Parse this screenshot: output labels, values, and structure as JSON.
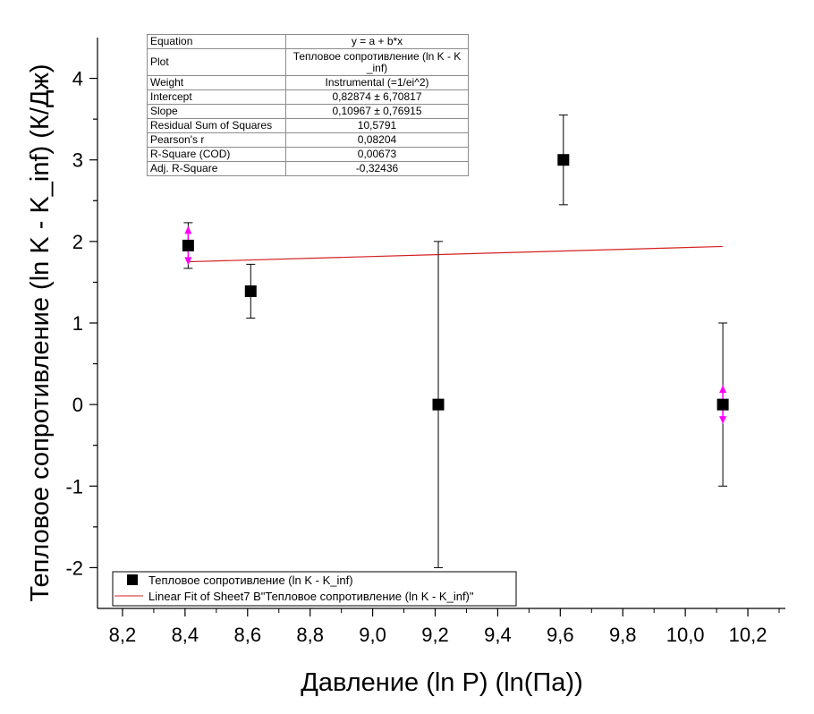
{
  "chart_data": {
    "type": "scatter",
    "xlabel": "Давление (ln P) (ln(Па))",
    "ylabel": "Тепловое сопротивление (ln K - K_inf) (К/Дж)",
    "xlim": [
      8.12,
      10.32
    ],
    "ylim": [
      -2.5,
      4.5
    ],
    "x_ticks": [
      "8,2",
      "8,4",
      "8,6",
      "8,8",
      "9,0",
      "9,2",
      "9,4",
      "9,6",
      "9,8",
      "10,0",
      "10,2"
    ],
    "x_tick_values": [
      8.2,
      8.4,
      8.6,
      8.8,
      9.0,
      9.2,
      9.4,
      9.6,
      9.8,
      10.0,
      10.2
    ],
    "y_ticks": [
      "-2",
      "-1",
      "0",
      "1",
      "2",
      "3",
      "4"
    ],
    "y_tick_values": [
      -2,
      -1,
      0,
      1,
      2,
      3,
      4
    ],
    "series": [
      {
        "name": "Тепловое сопротивление (ln K - K_inf)",
        "marker": "square",
        "color": "#000000",
        "points": [
          {
            "x": 8.41,
            "y": 1.95,
            "err": 0.28,
            "clipped_error": true
          },
          {
            "x": 8.61,
            "y": 1.39,
            "err": 0.33,
            "clipped_error": false
          },
          {
            "x": 9.21,
            "y": 0.0,
            "err": 2.0,
            "clipped_error": false
          },
          {
            "x": 9.61,
            "y": 3.0,
            "err": 0.55,
            "clipped_error": false
          },
          {
            "x": 10.12,
            "y": 0.0,
            "err": 1.0,
            "clipped_error": true
          }
        ]
      },
      {
        "name": "Linear Fit of Sheet7 B\"Тепловое сопротивление (ln K - K_inf)\"",
        "type": "line",
        "color": "#d42020",
        "intercept": 0.82874,
        "slope": 0.10967,
        "x_range": [
          8.41,
          10.12
        ]
      }
    ],
    "error_clip_color": "#ff00ff",
    "legend_position": "bottom-left",
    "grid": false
  },
  "stats_table": [
    {
      "key": "Equation",
      "value": "y = a + b*x"
    },
    {
      "key": "Plot",
      "value": "Тепловое сопротивление (ln K - K _inf)"
    },
    {
      "key": "Weight",
      "value": "Instrumental (=1/ei^2)"
    },
    {
      "key": "Intercept",
      "value": "0,82874 ± 6,70817"
    },
    {
      "key": "Slope",
      "value": "0,10967 ± 0,76915"
    },
    {
      "key": "Residual Sum of Squares",
      "value": "10,5791"
    },
    {
      "key": "Pearson's r",
      "value": "0,08204"
    },
    {
      "key": "R-Square (COD)",
      "value": "0,00673"
    },
    {
      "key": "Adj. R-Square",
      "value": "-0,32436"
    }
  ]
}
